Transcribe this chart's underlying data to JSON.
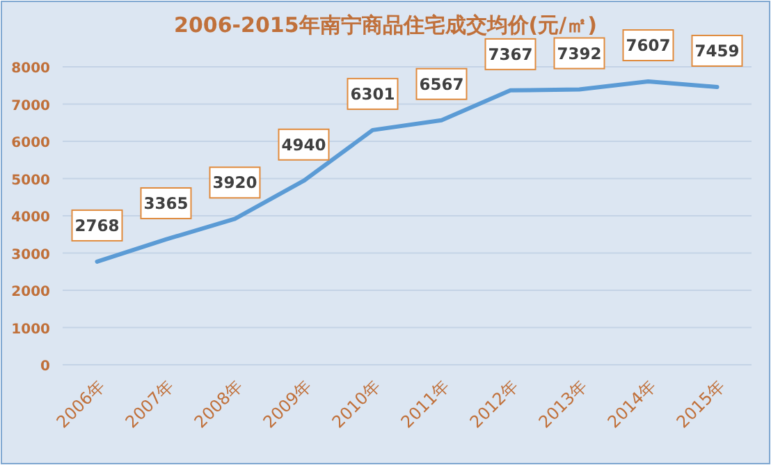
{
  "chart_data": {
    "type": "line",
    "title": "2006-2015年南宁商品住宅成交均价(元/㎡)",
    "categories": [
      "2006年",
      "2007年",
      "2008年",
      "2009年",
      "2010年",
      "2011年",
      "2012年",
      "2013年",
      "2014年",
      "2015年"
    ],
    "series": [
      {
        "color": "#5b9bd5",
        "values": [
          2768,
          3365,
          3920,
          4940,
          6301,
          6567,
          7367,
          7392,
          7607,
          7459
        ]
      }
    ],
    "ylim": [
      0,
      8000
    ],
    "yticks": [
      0,
      1000,
      2000,
      3000,
      4000,
      5000,
      6000,
      7000,
      8000
    ],
    "grid": "y",
    "data_labels": true,
    "marker": "none",
    "line_style": "solid"
  }
}
